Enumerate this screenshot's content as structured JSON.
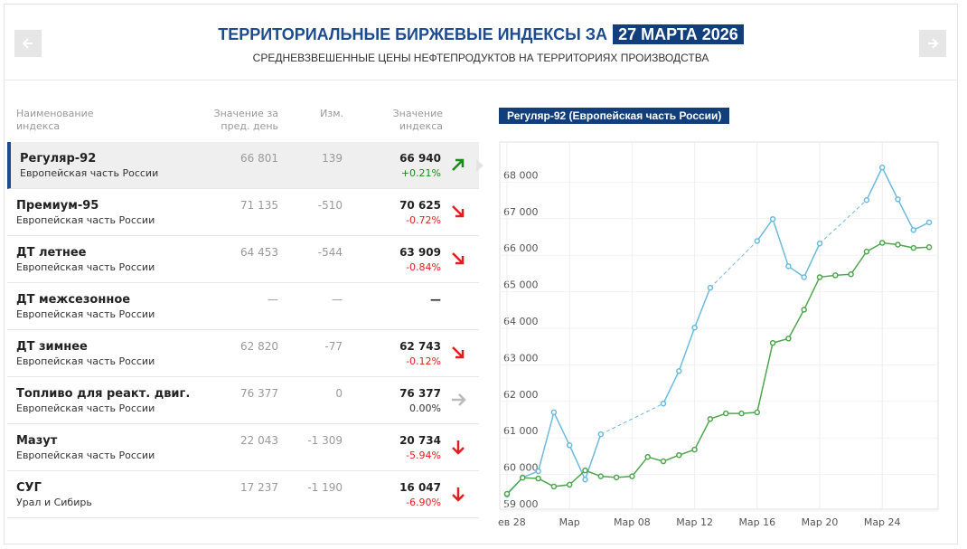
{
  "header": {
    "title": "ТЕРРИТОРИАЛЬНЫЕ БИРЖЕВЫЕ ИНДЕКСЫ ЗА",
    "date": "27 МАРТА 2026",
    "subtitle": "СРЕДНЕВЗВЕШЕННЫЕ ЦЕНЫ НЕФТЕПРОДУКТОВ НА ТЕРРИТОРИЯХ ПРОИЗВОДСТВА"
  },
  "table": {
    "selected_row": 0,
    "columns": [
      [
        "Наименование",
        "индекса"
      ],
      [
        "Значение за",
        "пред. день"
      ],
      [
        "Изм."
      ],
      [
        "Значение",
        "индекса"
      ]
    ],
    "rows": [
      {
        "name": "Регуляр-92",
        "region": "Европейская часть России",
        "prev": "66 801",
        "change": "139",
        "value": "66 940",
        "pct": "+0.21%",
        "trend": "up"
      },
      {
        "name": "Премиум-95",
        "region": "Европейская часть России",
        "prev": "71 135",
        "change": "-510",
        "value": "70 625",
        "pct": "-0.72%",
        "trend": "down"
      },
      {
        "name": "ДТ летнее",
        "region": "Европейская часть России",
        "prev": "64 453",
        "change": "-544",
        "value": "63 909",
        "pct": "-0.84%",
        "trend": "down"
      },
      {
        "name": "ДТ межсезонное",
        "region": "Европейская часть России",
        "prev": "—",
        "change": "—",
        "value": "—"
      },
      {
        "name": "ДТ зимнее",
        "region": "Европейская часть России",
        "prev": "62 820",
        "change": "-77",
        "value": "62 743",
        "pct": "-0.12%",
        "trend": "down"
      },
      {
        "name": "Топливо для реакт. двиг.",
        "region": "Европейская часть России",
        "prev": "76 377",
        "change": "0",
        "value": "76 377",
        "pct": "0.00%",
        "trend": "flat"
      },
      {
        "name": "Мазут",
        "region": "Европейская часть России",
        "prev": "22 043",
        "change": "-1 309",
        "value": "20 734",
        "pct": "-5.94%",
        "trend": "strong-down"
      },
      {
        "name": "СУГ",
        "region": "Урал и Сибирь",
        "prev": "17 237",
        "change": "-1 190",
        "value": "16 047",
        "pct": "-6.90%",
        "trend": "strong-down"
      }
    ]
  },
  "chart_data": {
    "type": "line",
    "title": "Регуляр-92 (Европейская часть России)",
    "categories": [
      "ев 28",
      null,
      null,
      null,
      "Мар",
      null,
      null,
      null,
      "Мар 08",
      null,
      null,
      null,
      "Мар 12",
      null,
      null,
      null,
      "Мар 16",
      null,
      null,
      null,
      "Мар 20",
      null,
      null,
      null,
      "Мар 24",
      null,
      null,
      null
    ],
    "series": [
      {
        "color": "#6cbadd",
        "values": [
          59450,
          59920,
          60090,
          61700,
          60800,
          59860,
          61100,
          null,
          null,
          null,
          61940,
          62830,
          64020,
          65110,
          null,
          null,
          66390,
          66990,
          65700,
          65400,
          66320,
          null,
          null,
          67510,
          68400,
          67530,
          66690,
          66900
        ]
      },
      {
        "color": "#4ea64e",
        "values": [
          59470,
          59910,
          59890,
          59670,
          59720,
          60110,
          59950,
          59920,
          59950,
          60480,
          60360,
          60530,
          60680,
          61520,
          61670,
          61670,
          61700,
          63600,
          63720,
          64510,
          65400,
          65450,
          65480,
          66100,
          66340,
          66290,
          66200,
          66220
        ]
      }
    ],
    "ylim": [
      59000,
      69000
    ],
    "yticks": [
      {
        "value": 59000,
        "label": "59 000"
      },
      {
        "value": 60000,
        "label": "60 000"
      },
      {
        "value": 61000,
        "label": "61 000"
      },
      {
        "value": 62000,
        "label": "62 000"
      },
      {
        "value": 63000,
        "label": "63 000"
      },
      {
        "value": 64000,
        "label": "64 000"
      },
      {
        "value": 65000,
        "label": "65 000"
      },
      {
        "value": 66000,
        "label": "66 000"
      },
      {
        "value": 67000,
        "label": "67 000"
      },
      {
        "value": 68000,
        "label": "68 000"
      }
    ],
    "grid": true
  }
}
